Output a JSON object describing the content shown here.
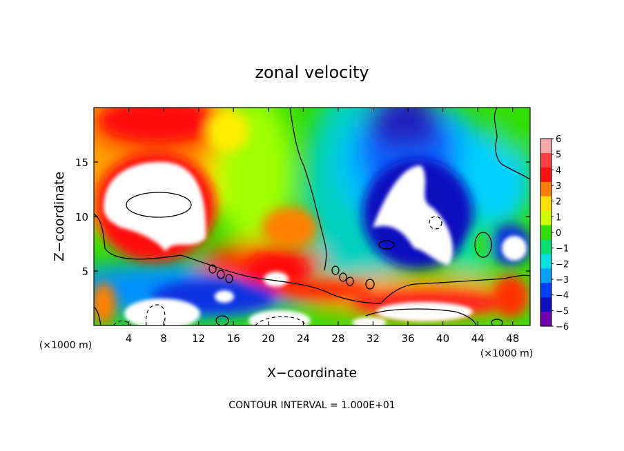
{
  "chart_data": {
    "type": "heatmap",
    "title": "zonal velocity",
    "xlabel": "X−coordinate",
    "ylabel": "Z−coordinate",
    "x_unit_left": "(×1000 m)",
    "x_unit_right": "(×1000 m)",
    "footer": "CONTOUR INTERVAL = 1.000E+01",
    "xlim": [
      0,
      50
    ],
    "ylim": [
      0,
      20
    ],
    "xticks": [
      4,
      8,
      12,
      16,
      20,
      24,
      28,
      32,
      36,
      40,
      44,
      48
    ],
    "yticks": [
      5,
      10,
      15
    ],
    "colorbar": {
      "min": -6,
      "max": 6,
      "labels": [
        "6",
        "5",
        "4",
        "3",
        "2",
        "1",
        "0",
        "−1",
        "−2",
        "−3",
        "−4",
        "−5",
        "−6"
      ],
      "colors": [
        "#f7a8a8",
        "#ff4040",
        "#ff1010",
        "#ff8000",
        "#ffe000",
        "#d2ff00",
        "#33dd00",
        "#00e070",
        "#00e0e0",
        "#00a0ff",
        "#0040ff",
        "#1010c0",
        "#7000b0"
      ]
    },
    "field_colors": {
      "positive": [
        "#33dd00",
        "#a0ff00",
        "#ffee00",
        "#ffa000",
        "#ff4000",
        "#ff1010",
        "#ff6060"
      ],
      "negative": [
        "#33dd00",
        "#00e0a0",
        "#00d0ff",
        "#0090ff",
        "#0040ff",
        "#1010c0"
      ],
      "saturated": "#ffffff"
    },
    "contour_interval": 10
  }
}
